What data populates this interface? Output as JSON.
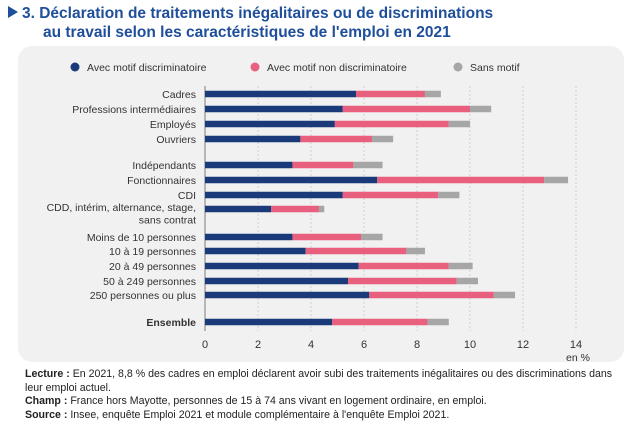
{
  "title": {
    "line1": "3. Déclaration de traitements inégalitaires ou de discriminations",
    "line2": "au travail selon les caractéristiques de l'emploi en 2021"
  },
  "chart_data": {
    "type": "bar",
    "orientation": "horizontal",
    "stacked": true,
    "title": "3. Déclaration de traitements inégalitaires ou de discriminations au travail selon les caractéristiques de l'emploi en 2021",
    "xlabel": "en %",
    "xlim": [
      0,
      14
    ],
    "xticks": [
      0,
      2,
      4,
      6,
      8,
      10,
      12,
      14
    ],
    "legend_position": "top",
    "colors": {
      "discrim": "#1b3a7a",
      "non_discrim": "#e8607e",
      "sans": "#a6a6a6"
    },
    "categories": [
      "Cadres",
      "Professions intermédiaires",
      "Employés",
      "Ouvriers",
      "Indépendants",
      "Fonctionnaires",
      "CDI",
      "CDD, intérim, alternance, stage, sans contrat",
      "Moins de 10 personnes",
      "10 à 19 personnes",
      "20 à 49 personnes",
      "50 à 249 personnes",
      "250 personnes ou plus",
      "Ensemble"
    ],
    "series": [
      {
        "name": "Avec motif discriminatoire",
        "values": [
          5.7,
          5.2,
          4.9,
          3.6,
          3.3,
          6.5,
          5.2,
          2.5,
          3.3,
          3.8,
          5.8,
          5.4,
          6.2,
          4.8
        ]
      },
      {
        "name": "Avec motif non discriminatoire",
        "values": [
          2.6,
          4.8,
          4.3,
          2.7,
          2.3,
          6.3,
          3.6,
          1.8,
          2.6,
          3.8,
          3.4,
          4.1,
          4.7,
          3.6
        ]
      },
      {
        "name": "Sans motif",
        "values": [
          0.6,
          0.8,
          0.8,
          0.8,
          1.1,
          0.9,
          0.8,
          0.2,
          0.8,
          0.7,
          0.9,
          0.8,
          0.8,
          0.8
        ]
      }
    ]
  },
  "notes": {
    "lecture_label": "Lecture :",
    "lecture_text": "En 2021, 8,8 % des cadres en emploi déclarent avoir subi des traitements inégalitaires ou des discriminations dans leur emploi actuel.",
    "champ_label": "Champ :",
    "champ_text": "France hors Mayotte, personnes de 15 à 74 ans vivant en logement ordinaire, en emploi.",
    "source_label": "Source :",
    "source_text": "Insee, enquête Emploi 2021 et module complémentaire à l'enquête Emploi 2021."
  }
}
